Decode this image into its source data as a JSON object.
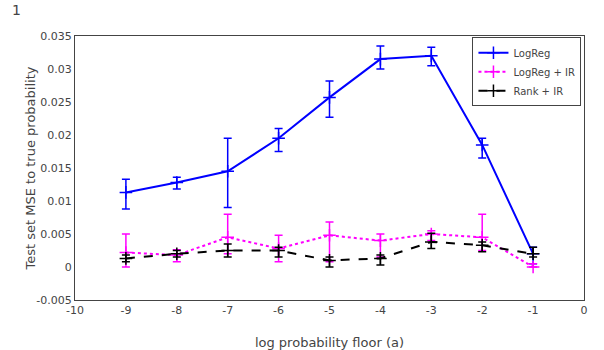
{
  "chart_data": {
    "type": "line",
    "title": "1",
    "x_label": "log probability floor (a)",
    "y_label": "Test set MSE to true probability",
    "x": [
      -9,
      -8,
      -7,
      -6,
      -5,
      -4,
      -3,
      -2,
      -1
    ],
    "series": [
      {
        "name": "LogReg",
        "color": "#0000ff",
        "line_style": "solid",
        "marker": "plus",
        "values": [
          0.0113,
          0.0128,
          0.0145,
          0.0195,
          0.0257,
          0.0315,
          0.032,
          0.0185,
          0.002
        ],
        "yerr_low": [
          0.0025,
          0.001,
          0.0055,
          0.002,
          0.003,
          0.0015,
          0.0015,
          0.002,
          0.0015
        ],
        "yerr_high": [
          0.002,
          0.0008,
          0.005,
          0.0015,
          0.0025,
          0.002,
          0.0013,
          0.001,
          0.001
        ]
      },
      {
        "name": "LogReg + IR",
        "color": "#ff00ff",
        "line_style": "dotted",
        "marker": "plus",
        "values": [
          0.0022,
          0.0018,
          0.0045,
          0.0028,
          0.0048,
          0.004,
          0.005,
          0.0045,
          0.0
        ],
        "yerr_low": [
          0.0022,
          0.001,
          0.0025,
          0.002,
          0.004,
          0.0025,
          0.001,
          0.002,
          0.0
        ],
        "yerr_high": [
          0.0028,
          0.0008,
          0.0035,
          0.002,
          0.002,
          0.001,
          0.0005,
          0.0035,
          0.0005
        ]
      },
      {
        "name": "Rank + IR",
        "color": "#000000",
        "line_style": "dashed",
        "marker": "plus",
        "values": [
          0.0013,
          0.002,
          0.0025,
          0.0025,
          0.001,
          0.0013,
          0.0038,
          0.0033,
          0.002
        ],
        "yerr_low": [
          0.0005,
          0.0005,
          0.001,
          0.001,
          0.001,
          0.001,
          0.001,
          0.001,
          0.0005
        ],
        "yerr_high": [
          0.0005,
          0.0005,
          0.001,
          0.0005,
          0.0005,
          0.0005,
          0.0013,
          0.0005,
          0.001
        ]
      }
    ],
    "xlim": [
      -10,
      0
    ],
    "xticks": [
      -10,
      -9,
      -8,
      -7,
      -6,
      -5,
      -4,
      -3,
      -2,
      -1,
      0
    ],
    "ylim": [
      -0.005,
      0.035
    ],
    "yticks": [
      -0.005,
      0,
      0.005,
      0.01,
      0.015,
      0.02,
      0.025,
      0.03,
      0.035
    ],
    "grid": false,
    "legend": "upper right"
  }
}
